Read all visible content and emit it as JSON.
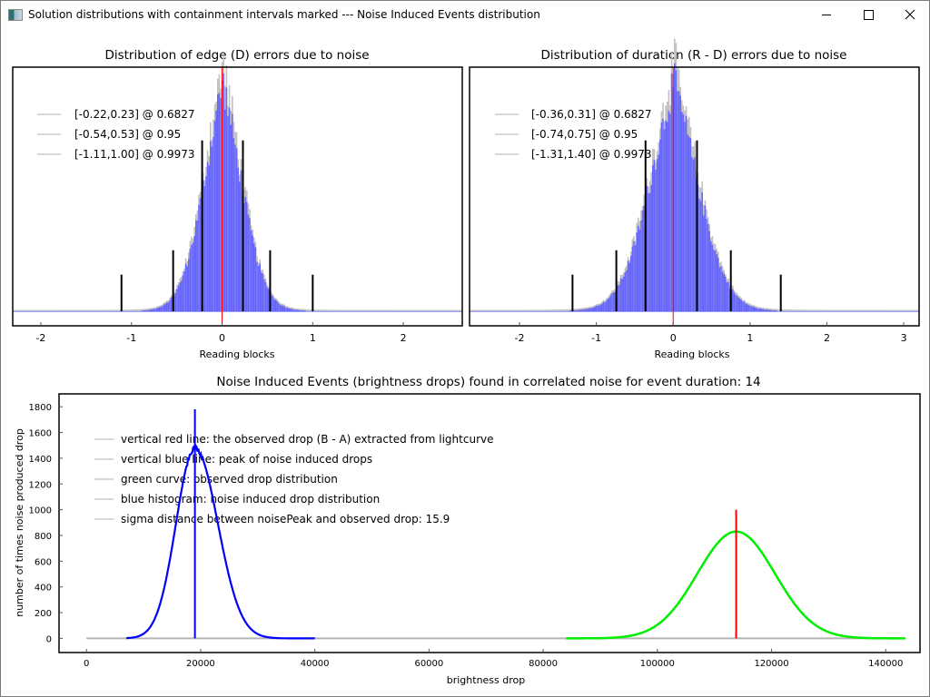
{
  "window": {
    "title": "Solution distributions with containment intervals marked --- Noise Induced Events distribution",
    "buttons": {
      "minimize": "minimize",
      "maximize": "maximize",
      "close": "close"
    }
  },
  "chart_data": [
    {
      "type": "bar",
      "title": "Distribution of edge (D) errors due to noise",
      "xlabel": "Reading blocks",
      "ylabel": "",
      "xlim": [
        -2.31,
        2.65
      ],
      "x_ticks": [
        "-2",
        "-1",
        "0",
        "1",
        "2"
      ],
      "x_tick_values": [
        -2,
        -1,
        0,
        1,
        2
      ],
      "center_line": {
        "x": 0,
        "color": "#ff0000"
      },
      "histogram": {
        "center": 0.0,
        "sigma": 0.24,
        "color": "#6666ff",
        "overlay_color": "#c0c0c0"
      },
      "legend": [
        "[-0.22,0.23] @ 0.6827",
        "[-0.54,0.53] @ 0.95",
        "[-1.11,1.00] @ 0.9973"
      ],
      "intervals": [
        {
          "lo": -0.22,
          "hi": 0.23,
          "level": 0.6827,
          "height": 0.7
        },
        {
          "lo": -0.54,
          "hi": 0.53,
          "level": 0.95,
          "height": 0.25
        },
        {
          "lo": -1.11,
          "hi": 1.0,
          "level": 0.9973,
          "height": 0.15
        }
      ]
    },
    {
      "type": "bar",
      "title": "Distribution of duration (R - D) errors due to noise",
      "xlabel": "Reading blocks",
      "ylabel": "",
      "xlim": [
        -2.65,
        3.2
      ],
      "x_ticks": [
        "-2",
        "-1",
        "0",
        "1",
        "2",
        "3"
      ],
      "x_tick_values": [
        -2,
        -1,
        0,
        1,
        2,
        3
      ],
      "center_line": {
        "x": 0,
        "color": "#ff0000"
      },
      "histogram": {
        "center": 0.0,
        "sigma": 0.36,
        "color": "#6666ff",
        "overlay_color": "#c0c0c0"
      },
      "legend": [
        "[-0.36,0.31] @ 0.6827",
        "[-0.74,0.75] @ 0.95",
        "[-1.31,1.40] @ 0.9973"
      ],
      "intervals": [
        {
          "lo": -0.36,
          "hi": 0.31,
          "level": 0.6827,
          "height": 0.7
        },
        {
          "lo": -0.74,
          "hi": 0.75,
          "level": 0.95,
          "height": 0.25
        },
        {
          "lo": -1.31,
          "hi": 1.4,
          "level": 0.9973,
          "height": 0.15
        }
      ]
    },
    {
      "type": "line",
      "title": "Noise Induced Events (brightness drops) found in correlated noise for event duration: 14",
      "xlabel": "brightness drop",
      "ylabel": "number of times noise produced drop",
      "xlim": [
        -4800,
        146000
      ],
      "ylim": [
        -110,
        1900
      ],
      "x_ticks": [
        "0",
        "20000",
        "40000",
        "60000",
        "80000",
        "100000",
        "120000",
        "140000"
      ],
      "x_tick_values": [
        0,
        20000,
        40000,
        60000,
        80000,
        100000,
        120000,
        140000
      ],
      "y_ticks": [
        "0",
        "200",
        "400",
        "600",
        "800",
        "1000",
        "1200",
        "1400",
        "1600",
        "1800"
      ],
      "y_tick_values": [
        0,
        200,
        400,
        600,
        800,
        1000,
        1200,
        1400,
        1600,
        1800
      ],
      "legend": [
        "vertical red line: the observed drop (B - A) extracted from lightcurve",
        "vertical blue line: peak of noise induced drops",
        "green curve: observed drop distribution",
        "blue histogram: noise induced drop distribution",
        "sigma distance between noisePeak and observed drop: 15.9"
      ],
      "series": [
        {
          "name": "noise induced drop distribution",
          "color": "#0000ff",
          "peak_x": 19000,
          "peak_y": 1480,
          "sigma_left": 3300,
          "sigma_right": 4000,
          "x_range": [
            7000,
            40000
          ]
        },
        {
          "name": "observed drop distribution",
          "color": "#00ee00",
          "peak_x": 113800,
          "peak_y": 830,
          "sigma": 6800,
          "x_range": [
            84000,
            143500
          ]
        }
      ],
      "baseline": {
        "x_range": [
          0,
          143500
        ],
        "y": 0,
        "color": "#b4b4b4"
      },
      "red_line": {
        "x": 113800,
        "y_top": 1000,
        "color": "#ff0000"
      },
      "blue_line": {
        "x": 19000,
        "y_top": 1780,
        "color": "#0000ff"
      }
    }
  ]
}
